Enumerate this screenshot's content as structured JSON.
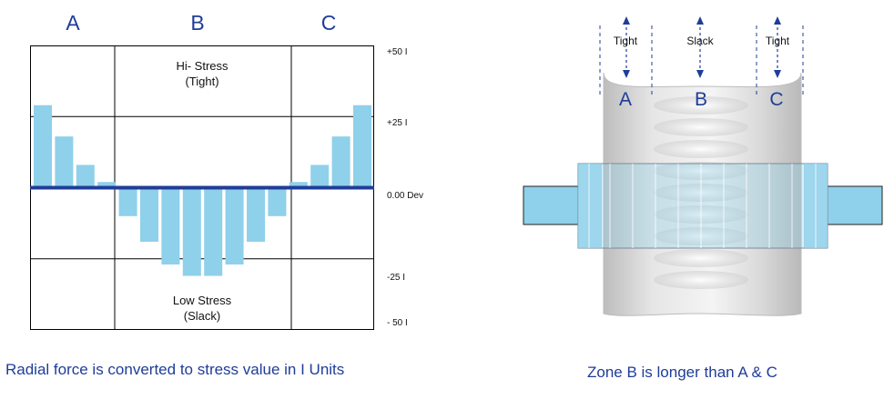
{
  "left": {
    "zones": [
      "A",
      "B",
      "C"
    ],
    "high_label_1": "Hi- Stress",
    "high_label_2": "(Tight)",
    "low_label_1": "Low Stress",
    "low_label_2": "(Slack)",
    "ticks": [
      "+50 I",
      "+25 I",
      "0.00 Dev",
      "-25 I",
      "- 50 I"
    ],
    "caption": "Radial force is converted to stress value in I Units",
    "colors": {
      "bar": "#8fd0ea",
      "baseline": "#1f3d99",
      "grid": "#000000"
    }
  },
  "chart_data": {
    "type": "bar",
    "ylim": [
      -50,
      50
    ],
    "values": [
      29,
      18,
      8,
      2,
      -10,
      -19,
      -27,
      -31,
      -31,
      -27,
      -19,
      -10,
      2,
      8,
      18,
      29
    ],
    "zones": [
      {
        "name": "A",
        "from": 0,
        "to": 3
      },
      {
        "name": "B",
        "from": 4,
        "to": 11
      },
      {
        "name": "C",
        "from": 12,
        "to": 15
      }
    ]
  },
  "right": {
    "top_labels": [
      "Tight",
      "Slack",
      "Tight"
    ],
    "zones": [
      "A",
      "B",
      "C"
    ],
    "caption": "Zone B is longer than A & C",
    "colors": {
      "roll": "#d8d8d8",
      "band": "#8fd0ea",
      "arrow": "#1f3d99"
    }
  }
}
